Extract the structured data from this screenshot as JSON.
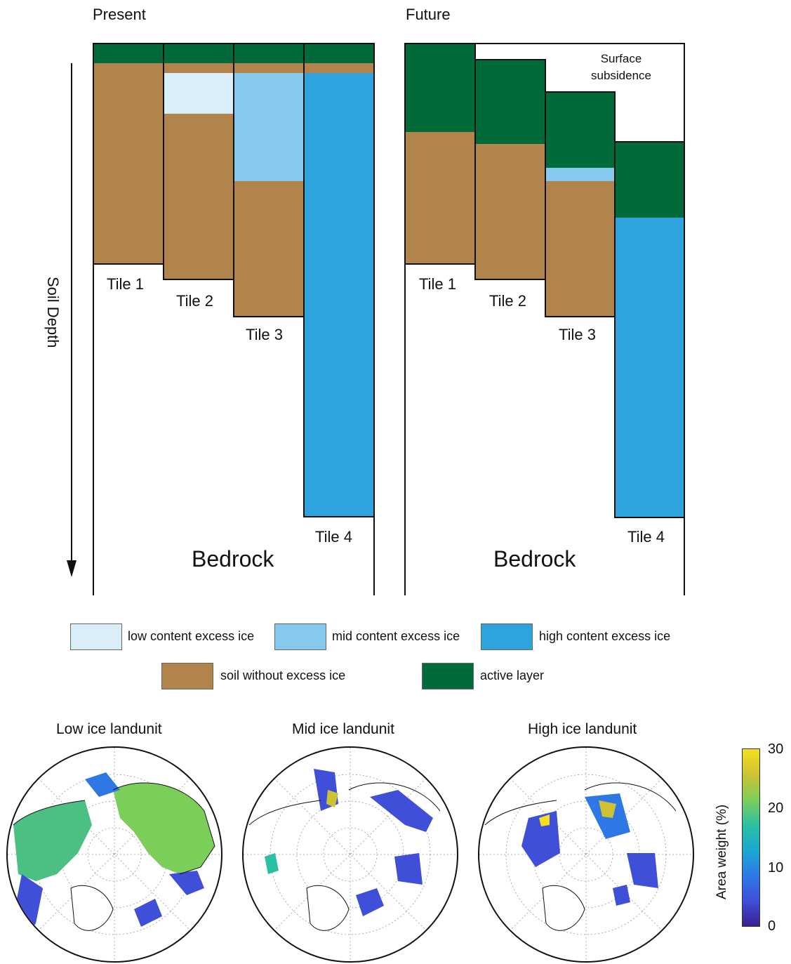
{
  "panels": {
    "present": {
      "title": "Present"
    },
    "future": {
      "title": "Future"
    }
  },
  "axis": {
    "soil_depth": "Soil Depth"
  },
  "tiles": {
    "present": [
      "Tile 1",
      "Tile 2",
      "Tile 3",
      "Tile 4"
    ],
    "future": [
      "Tile 1",
      "Tile 2",
      "Tile 3",
      "Tile 4"
    ]
  },
  "bedrock": {
    "present": "Bedrock",
    "future": "Bedrock"
  },
  "subsidence": {
    "line1": "Surface",
    "line2": "subsidence"
  },
  "legend": {
    "low": "low content excess ice",
    "mid": "mid content excess ice",
    "high": "high content excess ice",
    "soil": "soil without excess ice",
    "active": "active layer"
  },
  "colors": {
    "active_layer": "#006b38",
    "soil": "#b0844a",
    "low_ice": "#d9eef9",
    "mid_ice": "#85caed",
    "high_ice": "#2fa3de",
    "outline": "#111111"
  },
  "maps": {
    "low": "Low ice landunit",
    "mid": "Mid ice landunit",
    "high": "High ice landunit"
  },
  "colorbar": {
    "label": "Area weight (%)",
    "ticks": [
      "30",
      "20",
      "10",
      "0"
    ],
    "min": 0,
    "max": 30,
    "colormap": [
      "#3a1f8f",
      "#3f4fd8",
      "#2e78e6",
      "#1aa8cf",
      "#2bc0a4",
      "#7cce5a",
      "#cfc232",
      "#f6df1f"
    ]
  }
}
